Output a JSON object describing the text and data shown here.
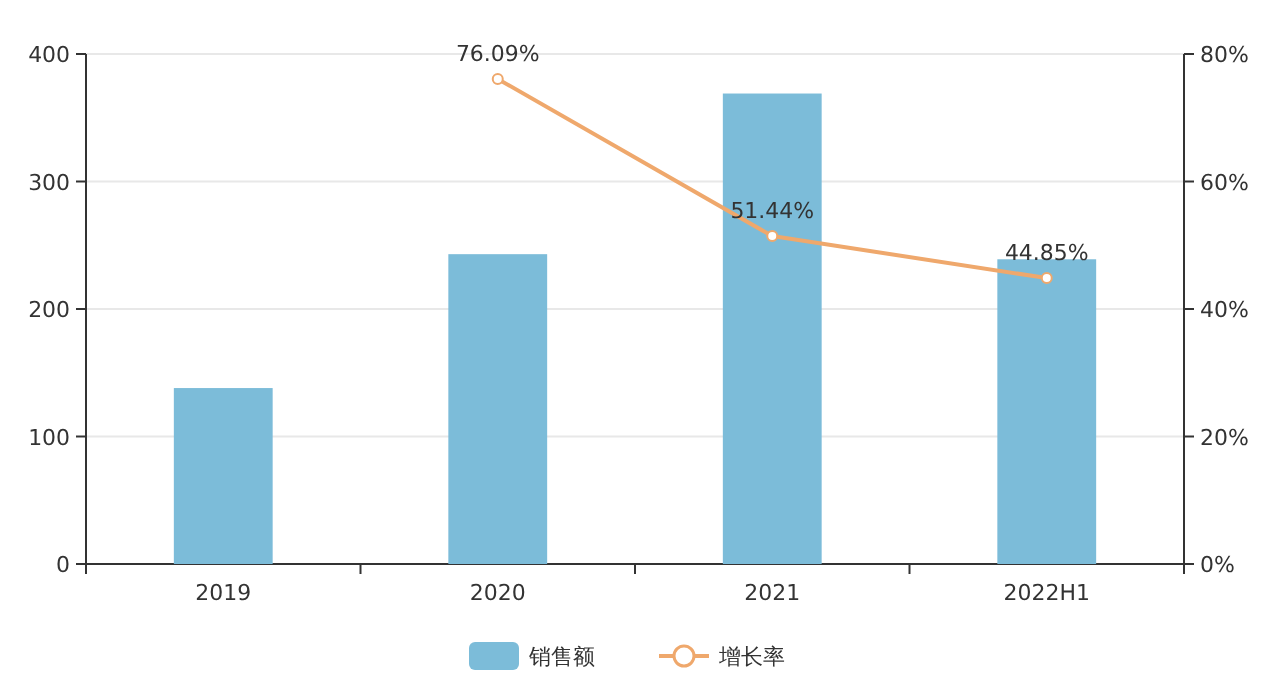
{
  "chart_data": {
    "type": "bar",
    "categories": [
      "2019",
      "2020",
      "2021",
      "2022H1"
    ],
    "series": [
      {
        "name": "销售额",
        "color": "#7cbcd9",
        "values": [
          138,
          243,
          369,
          239
        ]
      },
      {
        "name": "增长率",
        "type": "line",
        "axis": "y2",
        "color": "#efa86c",
        "marker": "circle",
        "values": [
          null,
          76.09,
          51.44,
          44.85
        ],
        "value_labels": [
          null,
          "76.09%",
          "51.44%",
          "44.85%"
        ]
      }
    ],
    "ylim": [
      0,
      400
    ],
    "yticks": [
      0,
      100,
      200,
      300,
      400
    ],
    "y2lim": [
      0,
      80
    ],
    "y2ticks": [
      {
        "value": 0,
        "label": "0%"
      },
      {
        "value": 20,
        "label": "20%"
      },
      {
        "value": 40,
        "label": "40%"
      },
      {
        "value": 60,
        "label": "60%"
      },
      {
        "value": 80,
        "label": "80%"
      }
    ],
    "grid": "y",
    "legend": "bottom"
  }
}
